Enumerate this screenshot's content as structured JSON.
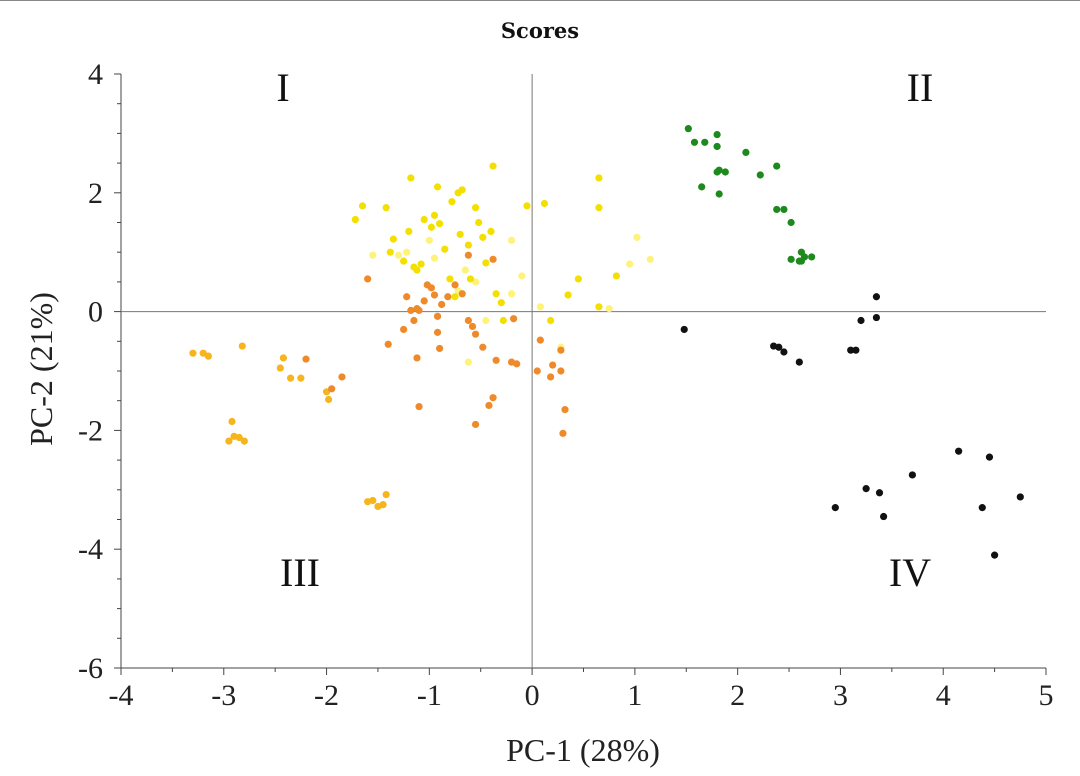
{
  "chart_data": {
    "type": "scatter",
    "title": "Scores",
    "xlabel": "PC-1 (28%)",
    "ylabel": "PC-2 (21%)",
    "xlim": [
      -4,
      5
    ],
    "ylim": [
      -6,
      4
    ],
    "xticks": [
      "-4",
      "-3",
      "-2",
      "-1",
      "0",
      "1",
      "2",
      "3",
      "4",
      "5"
    ],
    "yticks": [
      "4",
      "2",
      "0",
      "-2",
      "-4",
      "-6"
    ],
    "quadrant_labels": {
      "q1": "I",
      "q2": "II",
      "q3": "III",
      "q4": "IV"
    },
    "series": [
      {
        "name": "light yellow",
        "color": "#FFF27A",
        "points": [
          [
            -1.55,
            0.95
          ],
          [
            -1.3,
            0.95
          ],
          [
            -1.22,
            1.0
          ],
          [
            -1.0,
            1.2
          ],
          [
            -0.65,
            0.7
          ],
          [
            -0.2,
            1.2
          ],
          [
            -0.1,
            0.6
          ],
          [
            -0.55,
            0.5
          ],
          [
            -0.45,
            -0.15
          ],
          [
            -0.62,
            -0.85
          ],
          [
            -0.2,
            0.3
          ],
          [
            0.08,
            0.08
          ],
          [
            0.28,
            -0.6
          ],
          [
            0.75,
            0.05
          ],
          [
            0.95,
            0.8
          ],
          [
            1.02,
            1.25
          ],
          [
            1.15,
            0.88
          ],
          [
            -0.72,
            0.35
          ],
          [
            -0.95,
            0.9
          ]
        ]
      },
      {
        "name": "yellow",
        "color": "#F3E000",
        "points": [
          [
            -1.72,
            1.55
          ],
          [
            -1.65,
            1.78
          ],
          [
            -1.42,
            1.75
          ],
          [
            -1.38,
            1.0
          ],
          [
            -1.35,
            1.22
          ],
          [
            -1.25,
            0.85
          ],
          [
            -1.2,
            1.35
          ],
          [
            -1.18,
            2.25
          ],
          [
            -1.12,
            0.7
          ],
          [
            -1.08,
            0.8
          ],
          [
            -1.05,
            1.55
          ],
          [
            -0.98,
            1.42
          ],
          [
            -0.95,
            1.62
          ],
          [
            -0.9,
            1.48
          ],
          [
            -0.92,
            2.1
          ],
          [
            -0.85,
            1.05
          ],
          [
            -0.8,
            0.55
          ],
          [
            -0.78,
            1.85
          ],
          [
            -0.72,
            2.0
          ],
          [
            -0.68,
            2.05
          ],
          [
            -0.75,
            0.25
          ],
          [
            -0.7,
            1.3
          ],
          [
            -0.62,
            1.12
          ],
          [
            -0.55,
            1.75
          ],
          [
            -0.52,
            1.5
          ],
          [
            -0.48,
            1.25
          ],
          [
            -0.45,
            0.82
          ],
          [
            -0.4,
            1.35
          ],
          [
            -0.35,
            0.3
          ],
          [
            -0.3,
            0.15
          ],
          [
            -0.28,
            -0.15
          ],
          [
            -0.38,
            2.45
          ],
          [
            -0.05,
            1.78
          ],
          [
            0.12,
            1.82
          ],
          [
            0.18,
            -0.15
          ],
          [
            0.35,
            0.28
          ],
          [
            0.45,
            0.55
          ],
          [
            0.65,
            2.25
          ],
          [
            0.65,
            1.75
          ],
          [
            0.65,
            0.08
          ],
          [
            0.82,
            0.6
          ],
          [
            -1.15,
            0.75
          ],
          [
            -0.6,
            0.55
          ]
        ]
      },
      {
        "name": "gold",
        "color": "#F6B41D",
        "points": [
          [
            -3.3,
            -0.7
          ],
          [
            -3.2,
            -0.7
          ],
          [
            -3.15,
            -0.75
          ],
          [
            -2.82,
            -0.58
          ],
          [
            -2.92,
            -1.85
          ],
          [
            -2.95,
            -2.18
          ],
          [
            -2.9,
            -2.1
          ],
          [
            -2.85,
            -2.12
          ],
          [
            -2.8,
            -2.18
          ],
          [
            -2.45,
            -0.95
          ],
          [
            -2.42,
            -0.78
          ],
          [
            -2.35,
            -1.12
          ],
          [
            -2.25,
            -1.12
          ],
          [
            -1.98,
            -1.48
          ],
          [
            -1.55,
            -3.18
          ],
          [
            -1.5,
            -3.28
          ],
          [
            -1.45,
            -3.25
          ],
          [
            -1.42,
            -3.08
          ],
          [
            -1.6,
            -3.2
          ],
          [
            -2.0,
            -1.35
          ]
        ]
      },
      {
        "name": "orange",
        "color": "#EE8A2A",
        "points": [
          [
            -2.2,
            -0.8
          ],
          [
            -1.95,
            -1.3
          ],
          [
            -1.85,
            -1.1
          ],
          [
            -1.6,
            0.55
          ],
          [
            -1.4,
            -0.55
          ],
          [
            -1.25,
            -0.3
          ],
          [
            -1.22,
            0.25
          ],
          [
            -1.18,
            0.02
          ],
          [
            -1.12,
            0.05
          ],
          [
            -1.1,
            0.02
          ],
          [
            -1.15,
            -0.15
          ],
          [
            -1.05,
            0.18
          ],
          [
            -1.02,
            0.45
          ],
          [
            -0.98,
            0.4
          ],
          [
            -0.95,
            0.28
          ],
          [
            -0.92,
            -0.08
          ],
          [
            -0.88,
            0.12
          ],
          [
            -0.82,
            0.25
          ],
          [
            -0.9,
            -0.62
          ],
          [
            -1.1,
            -1.6
          ],
          [
            -0.75,
            0.45
          ],
          [
            -0.62,
            0.95
          ],
          [
            -0.62,
            -0.15
          ],
          [
            -0.58,
            -0.25
          ],
          [
            -0.55,
            -0.38
          ],
          [
            -0.48,
            -0.6
          ],
          [
            -0.42,
            -1.58
          ],
          [
            -0.38,
            -1.45
          ],
          [
            -0.35,
            -0.82
          ],
          [
            -0.2,
            -0.85
          ],
          [
            -0.15,
            -0.88
          ],
          [
            -0.18,
            -0.12
          ],
          [
            0.05,
            -1.0
          ],
          [
            0.08,
            -0.48
          ],
          [
            0.2,
            -0.9
          ],
          [
            0.28,
            -1.0
          ],
          [
            0.28,
            -0.65
          ],
          [
            0.3,
            -2.05
          ],
          [
            0.32,
            -1.65
          ],
          [
            -0.92,
            -0.35
          ],
          [
            -0.55,
            -1.9
          ],
          [
            -0.38,
            0.88
          ],
          [
            -1.12,
            -0.78
          ],
          [
            -0.68,
            0.3
          ],
          [
            0.18,
            -1.1
          ]
        ]
      },
      {
        "name": "green",
        "color": "#1E8A1E",
        "points": [
          [
            1.52,
            3.08
          ],
          [
            1.58,
            2.85
          ],
          [
            1.68,
            2.85
          ],
          [
            1.8,
            2.98
          ],
          [
            1.8,
            2.78
          ],
          [
            1.82,
            2.38
          ],
          [
            1.88,
            2.35
          ],
          [
            1.65,
            2.1
          ],
          [
            1.82,
            1.98
          ],
          [
            2.08,
            2.68
          ],
          [
            2.22,
            2.3
          ],
          [
            2.38,
            2.45
          ],
          [
            2.38,
            1.72
          ],
          [
            2.45,
            1.72
          ],
          [
            2.52,
            1.5
          ],
          [
            2.52,
            0.88
          ],
          [
            2.6,
            0.85
          ],
          [
            2.62,
            1.0
          ],
          [
            2.65,
            0.92
          ],
          [
            2.72,
            0.92
          ],
          [
            2.62,
            0.85
          ],
          [
            1.8,
            2.35
          ]
        ]
      },
      {
        "name": "black",
        "color": "#111111",
        "points": [
          [
            1.48,
            -0.3
          ],
          [
            2.35,
            -0.58
          ],
          [
            2.4,
            -0.6
          ],
          [
            2.45,
            -0.68
          ],
          [
            2.6,
            -0.85
          ],
          [
            3.1,
            -0.65
          ],
          [
            3.15,
            -0.65
          ],
          [
            3.2,
            -0.15
          ],
          [
            3.35,
            -0.1
          ],
          [
            3.35,
            0.25
          ],
          [
            2.95,
            -3.3
          ],
          [
            3.25,
            -2.98
          ],
          [
            3.38,
            -3.05
          ],
          [
            3.42,
            -3.45
          ],
          [
            3.7,
            -2.75
          ],
          [
            4.15,
            -2.35
          ],
          [
            4.38,
            -3.3
          ],
          [
            4.45,
            -2.45
          ],
          [
            4.5,
            -4.1
          ],
          [
            4.75,
            -3.12
          ]
        ]
      }
    ]
  }
}
